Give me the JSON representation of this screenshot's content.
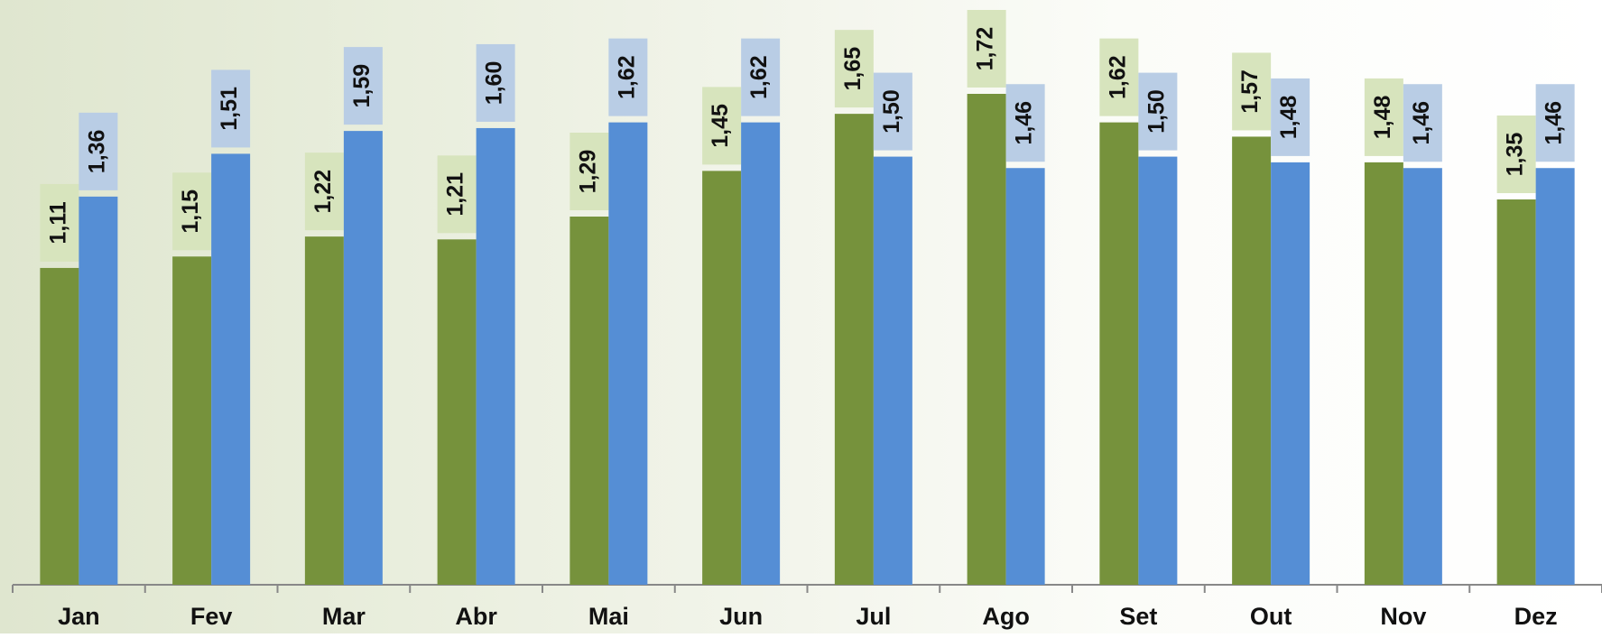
{
  "chart_data": {
    "type": "bar",
    "categories": [
      "Jan",
      "Fev",
      "Mar",
      "Abr",
      "Mai",
      "Jun",
      "Jul",
      "Ago",
      "Set",
      "Out",
      "Nov",
      "Dez"
    ],
    "series": [
      {
        "color": "#76923c",
        "label_color": "#d7e4bd",
        "values": [
          1.11,
          1.15,
          1.22,
          1.21,
          1.29,
          1.45,
          1.65,
          1.72,
          1.62,
          1.57,
          1.48,
          1.35
        ],
        "value_labels": [
          "1,11",
          "1,15",
          "1,22",
          "1,21",
          "1,29",
          "1,45",
          "1,65",
          "1,72",
          "1,62",
          "1,57",
          "1,48",
          "1,35"
        ]
      },
      {
        "color": "#558ed5",
        "label_color": "#b9cde5",
        "values": [
          1.36,
          1.51,
          1.59,
          1.6,
          1.62,
          1.62,
          1.5,
          1.46,
          1.5,
          1.48,
          1.46,
          1.46
        ],
        "value_labels": [
          "1,36",
          "1,51",
          "1,59",
          "1,60",
          "1,62",
          "1,62",
          "1,50",
          "1,46",
          "1,50",
          "1,48",
          "1,46",
          "1,46"
        ]
      }
    ]
  }
}
